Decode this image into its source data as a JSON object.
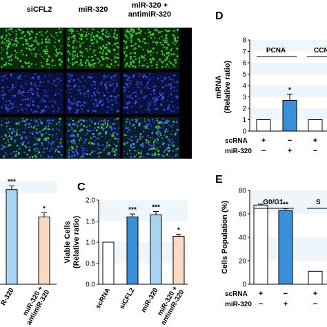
{
  "colors": {
    "dark_blue": "#3a8fd8",
    "light_blue": "#a8d4f2",
    "peach": "#fad8c3",
    "white_bar": "#ffffff",
    "green_signal": "#3fbf3f",
    "blue_nucleus": "#2a3fbf",
    "band": "#eef5fb"
  },
  "panel_letters": {
    "C": "C",
    "D": "D",
    "E": "E"
  },
  "micrographs": {
    "column_headers": [
      "siCFL2",
      "miR-320",
      "miR-320 +\nantimiR-320"
    ],
    "row_types": [
      "green-stain",
      "nuclear-stain",
      "merged"
    ]
  },
  "chart_data": [
    {
      "id": "B-partial",
      "type": "bar",
      "categories": [
        "miR-320",
        "miR-320 + antimiR-320"
      ],
      "visible_category_labels": [
        "R-320",
        "miR-320 +\nantimiR-320"
      ],
      "values": [
        1.83,
        1.3
      ],
      "errors": [
        0.07,
        0.08
      ],
      "significance": [
        "***",
        "*"
      ],
      "colors": [
        "#a8d4f2",
        "#fad8c3"
      ],
      "ylim": [
        0,
        2.0
      ]
    },
    {
      "id": "C",
      "type": "bar",
      "ylabel": "Viable Cells\n(Relative ratio)",
      "ylim": [
        0,
        2.0
      ],
      "yticks": [
        "0.0",
        "0.5",
        "1.0",
        "1.5",
        "2.0"
      ],
      "categories": [
        "scRNA",
        "siCFL2",
        "miR-320",
        "miR-320 +\nantimiR-320"
      ],
      "values": [
        1.0,
        1.6,
        1.65,
        1.14
      ],
      "errors": [
        0.0,
        0.07,
        0.08,
        0.05
      ],
      "significance": [
        "",
        "***",
        "***",
        "*"
      ],
      "colors": [
        "#ffffff",
        "#3a8fd8",
        "#a8d4f2",
        "#fad8c3"
      ]
    },
    {
      "id": "D",
      "type": "bar",
      "ylabel": "mRNA\n(Relative ratio)",
      "ylim": [
        0,
        8
      ],
      "yticks": [
        "0",
        "1",
        "2",
        "3",
        "4",
        "5",
        "6",
        "7",
        "8"
      ],
      "groups": [
        "PCNA",
        "CCN"
      ],
      "categories": [
        "PCNA scRNA",
        "PCNA miR-320",
        "CCN scRNA"
      ],
      "values": [
        1.0,
        2.7,
        1.0
      ],
      "errors": [
        0.0,
        0.55,
        0.0
      ],
      "significance": [
        "",
        "*",
        ""
      ],
      "colors": [
        "#ffffff",
        "#3a8fd8",
        "#ffffff"
      ],
      "treatment_rows": {
        "labels": [
          "scRNA",
          "miR-320"
        ],
        "signs": [
          [
            "+",
            "−",
            "+"
          ],
          [
            "−",
            "+",
            "−"
          ]
        ]
      }
    },
    {
      "id": "E",
      "type": "bar",
      "ylabel": "Cells Population (%)",
      "ylim": [
        0,
        80
      ],
      "yticks": [
        "0",
        "20",
        "40",
        "60",
        "80"
      ],
      "groups": [
        "G0/G1",
        "S"
      ],
      "categories": [
        "G0/G1 scRNA",
        "G0/G1 miR-320",
        "S scRNA"
      ],
      "values": [
        67.5,
        63.0,
        11.0
      ],
      "errors": [
        0.8,
        1.5,
        0.0
      ],
      "significance": [
        "",
        "**",
        ""
      ],
      "colors": [
        "#ffffff",
        "#3a8fd8",
        "#ffffff"
      ],
      "treatment_rows": {
        "labels": [
          "scRNA",
          "miR-320"
        ],
        "signs": [
          [
            "+",
            "−",
            "+"
          ],
          [
            "−",
            "+",
            "−"
          ]
        ]
      }
    }
  ]
}
